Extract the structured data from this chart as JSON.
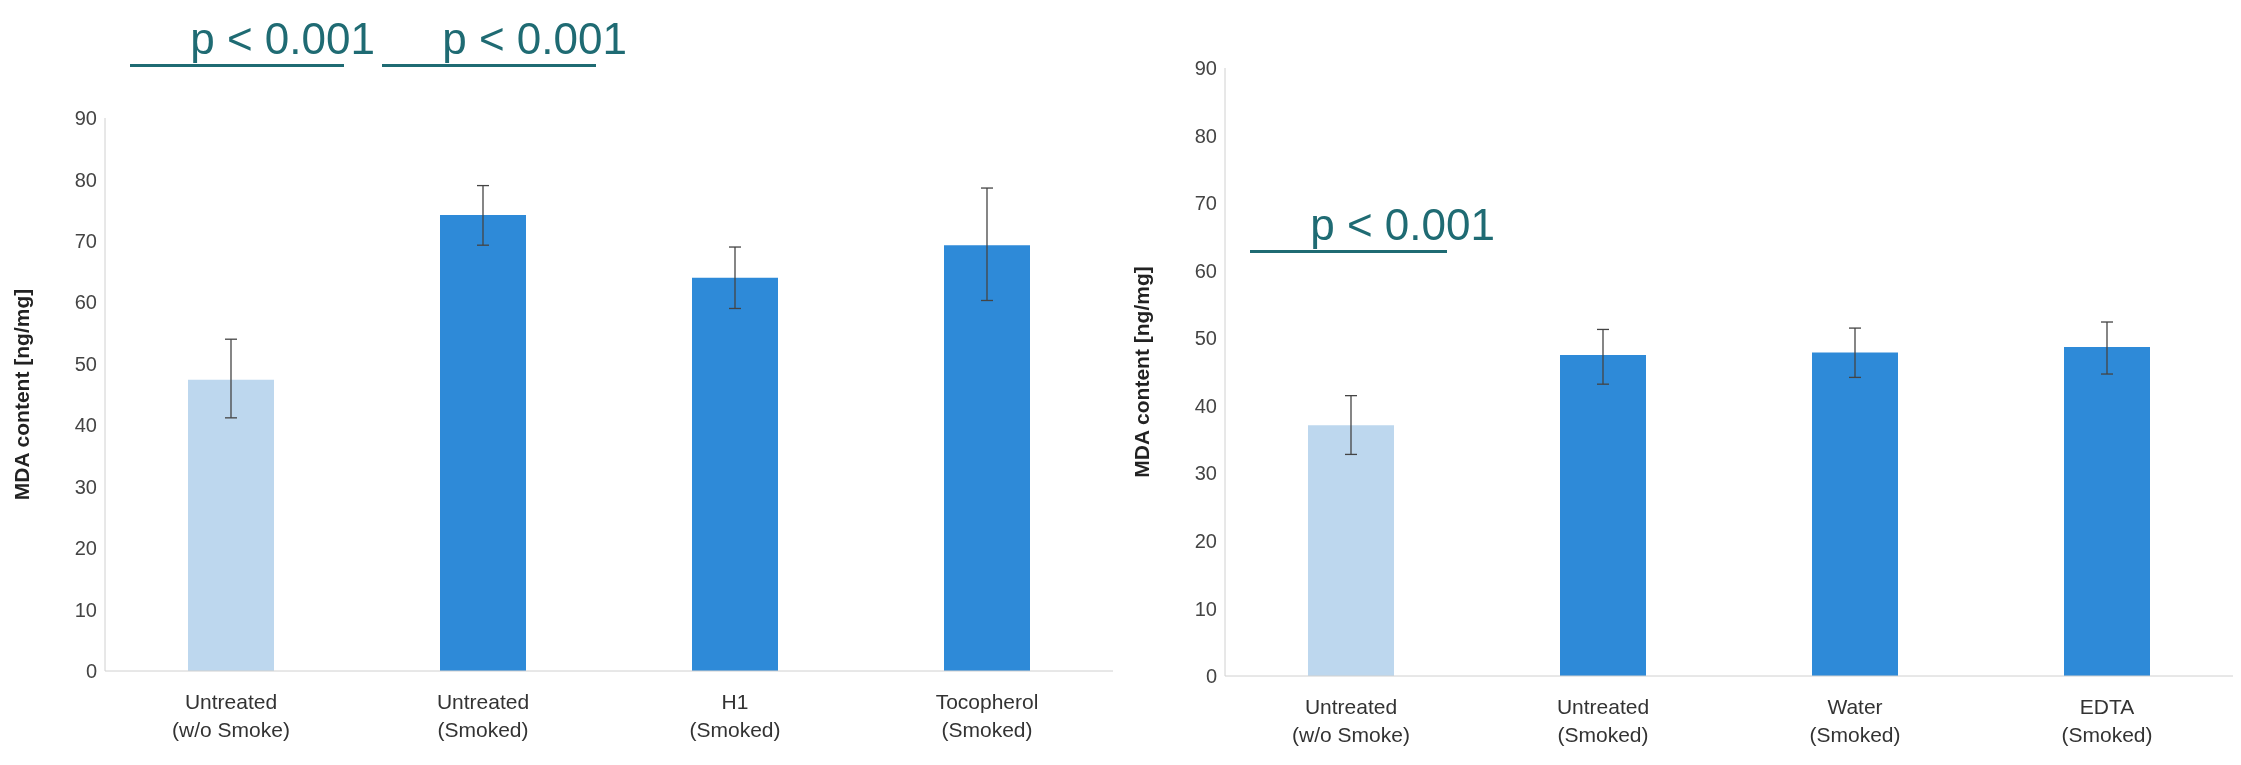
{
  "chart_data": [
    {
      "type": "bar",
      "ylabel": "MDA content [ng/mg]",
      "categories": [
        "Untreated\n(w/o Smoke)",
        "Untreated\n(Smoked)",
        "H1\n(Smoked)",
        "Tocopherol\n(Smoked)"
      ],
      "values": [
        47.4,
        74.2,
        64,
        69.3
      ],
      "colors": [
        "#bdd7ee",
        "#2e8ad8",
        "#2e8ad8",
        "#2e8ad8"
      ],
      "errors": [
        [
          41.2,
          54
        ],
        [
          69.3,
          79
        ],
        [
          59,
          69
        ],
        [
          60.3,
          78.6
        ]
      ],
      "ylim": [
        0,
        90
      ],
      "yticks": [
        0,
        10,
        20,
        30,
        40,
        50,
        60,
        70,
        80,
        90
      ],
      "grid": false,
      "annotations": [
        "p < 0.001",
        "p < 0.001"
      ]
    },
    {
      "type": "bar",
      "ylabel": "MDA content [ng/mg]",
      "categories": [
        "Untreated\n(w/o Smoke)",
        "Untreated\n(Smoked)",
        "Water\n(Smoked)",
        "EDTA\n(Smoked)"
      ],
      "values": [
        37.1,
        47.5,
        47.9,
        48.7
      ],
      "colors": [
        "#bdd7ee",
        "#2e8ad8",
        "#2e8ad8",
        "#2e8ad8"
      ],
      "errors": [
        [
          32.8,
          41.5
        ],
        [
          43.2,
          51.3
        ],
        [
          44.2,
          51.5
        ],
        [
          44.7,
          52.4
        ]
      ],
      "ylim": [
        0,
        90
      ],
      "yticks": [
        0,
        10,
        20,
        30,
        40,
        50,
        60,
        70,
        80,
        90
      ],
      "grid": false,
      "annotations": [
        "p < 0.001"
      ]
    }
  ]
}
